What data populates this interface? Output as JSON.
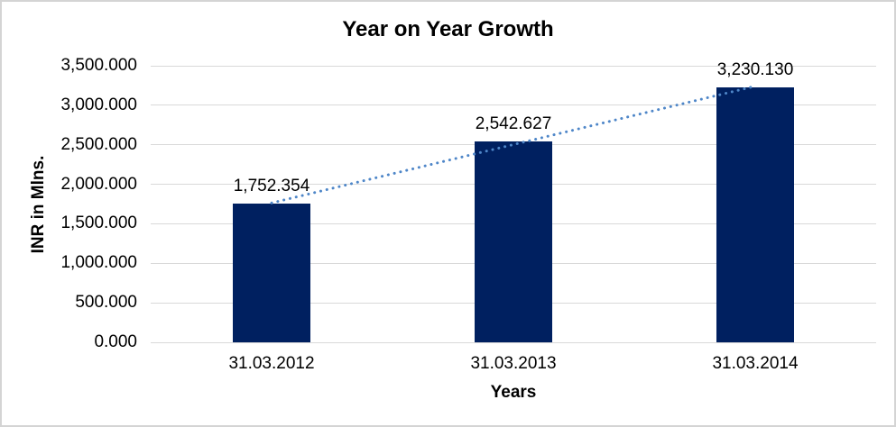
{
  "chart_data": {
    "type": "bar",
    "title": "Year on Year Growth",
    "xlabel": "Years",
    "ylabel": "INR in Mlns.",
    "categories": [
      "31.03.2012",
      "31.03.2013",
      "31.03.2014"
    ],
    "values": [
      1752.354,
      2542.627,
      3230.13
    ],
    "data_labels": [
      "1,752.354",
      "2,542.627",
      "3,230.130"
    ],
    "ylim": [
      0,
      3500
    ],
    "ytick_step": 500,
    "ytick_labels": [
      "0.000",
      "500.000",
      "1,000.000",
      "1,500.000",
      "2,000.000",
      "2,500.000",
      "3,000.000",
      "3,500.000"
    ],
    "grid": true,
    "legend": "none",
    "trendline": {
      "style": "dotted",
      "color": "#4e86c8",
      "from_value": 1752.354,
      "to_value": 3230.13
    },
    "colors": {
      "bar": "#002060",
      "gridline": "#d9d9d9",
      "text": "#000000",
      "background": "#ffffff",
      "border": "#d4d4d4"
    }
  }
}
